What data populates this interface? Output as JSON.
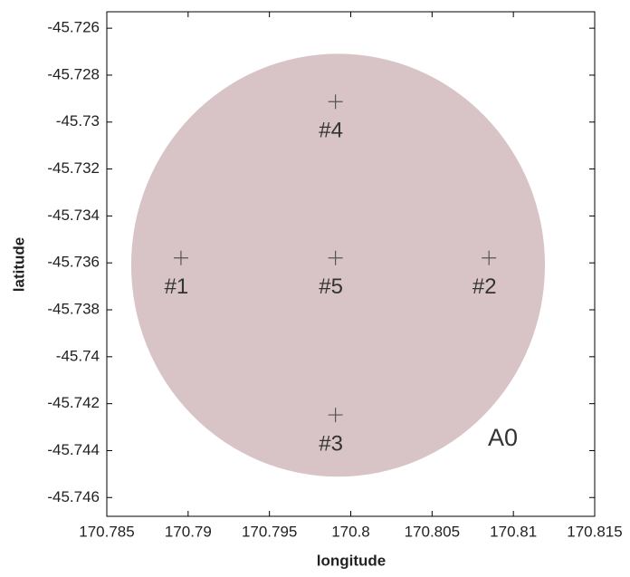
{
  "chart_data": {
    "type": "scatter",
    "xlabel": "longitude",
    "ylabel": "latitude",
    "x": [
      170.78956,
      170.8085,
      170.79906,
      170.79906,
      170.79906
    ],
    "values": [
      -45.73579,
      -45.73579,
      -45.74248,
      -45.72913,
      -45.73579
    ],
    "point_labels": [
      "#1",
      "#2",
      "#3",
      "#4",
      "#5"
    ],
    "color": "#555555",
    "xlim": [
      170.785,
      170.815
    ],
    "ylim": [
      -45.7468,
      -45.7253
    ],
    "xticks": [
      170.785,
      170.79,
      170.795,
      170.8,
      170.805,
      170.81,
      170.815
    ],
    "yticks": [
      -45.726,
      -45.728,
      -45.73,
      -45.732,
      -45.734,
      -45.736,
      -45.738,
      -45.74,
      -45.742,
      -45.744,
      -45.746
    ],
    "region": {
      "label": "A0",
      "center_x": 170.79922,
      "center_y": -45.7361,
      "radius_x": 0.01272,
      "radius_y": 0.00901,
      "color": "#d8c4c7"
    }
  }
}
